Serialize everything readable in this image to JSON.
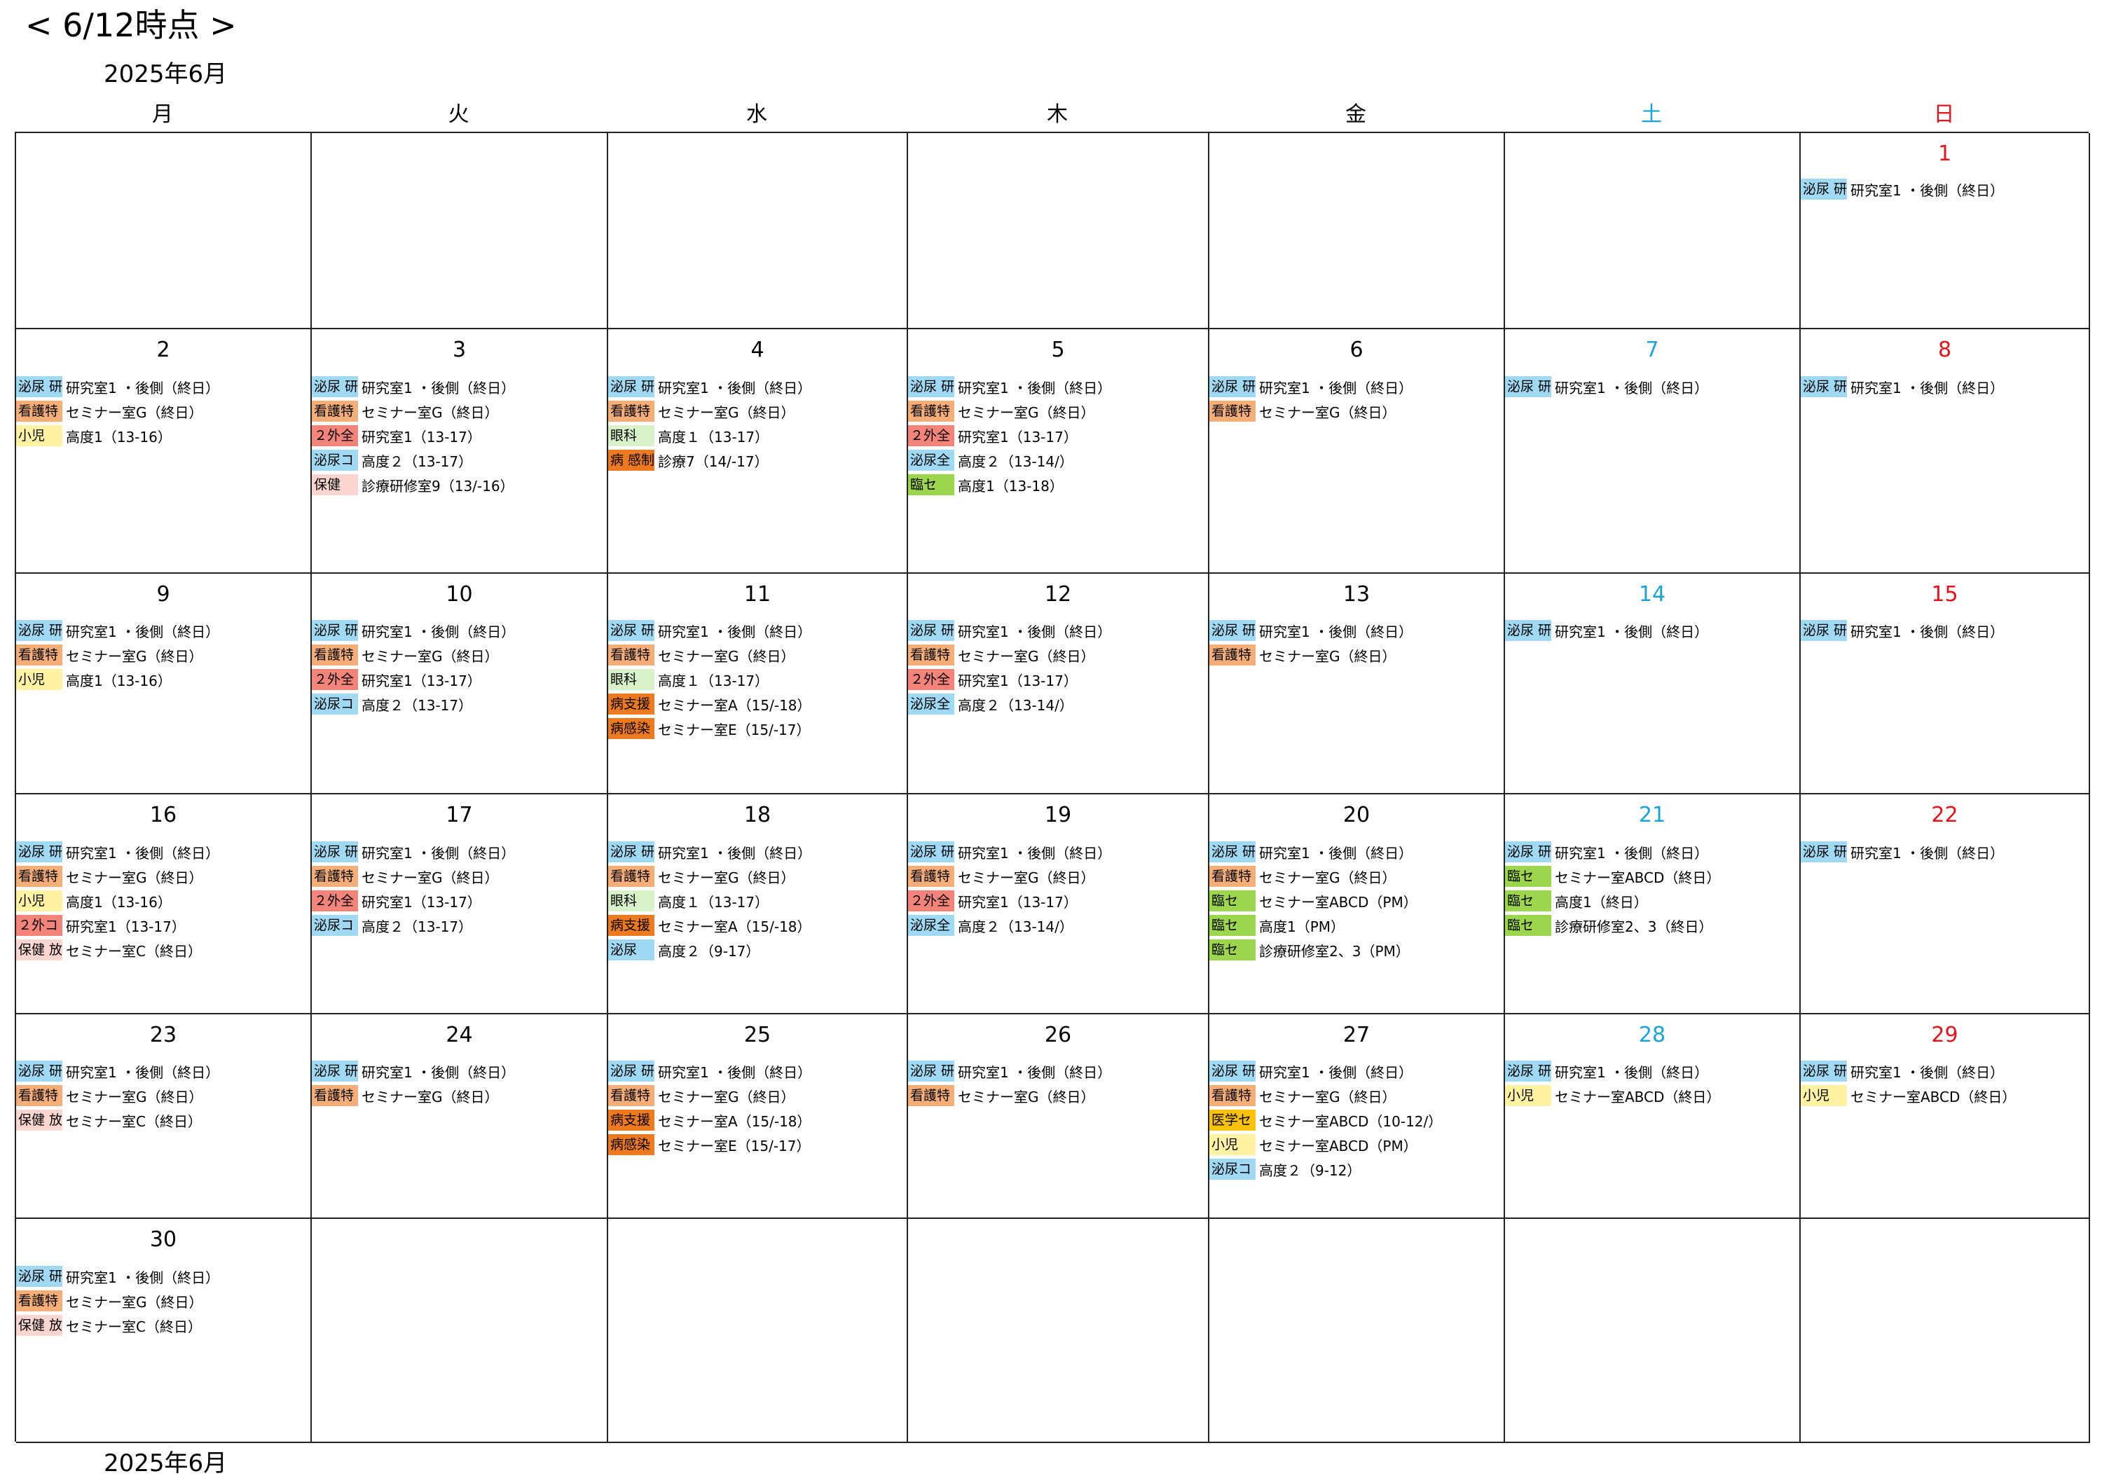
{
  "page_title": "< 6/12時点 >",
  "month_label": "2025年6月",
  "footer_month_label": "2025年6月",
  "weekdays": [
    {
      "label": "月",
      "kind": "wk"
    },
    {
      "label": "火",
      "kind": "wk"
    },
    {
      "label": "水",
      "kind": "wk"
    },
    {
      "label": "木",
      "kind": "wk"
    },
    {
      "label": "金",
      "kind": "wk"
    },
    {
      "label": "土",
      "kind": "sat"
    },
    {
      "label": "日",
      "kind": "sun"
    }
  ],
  "colors": {
    "weekday": "#000000",
    "saturday": "#1aa3d8",
    "sunday": "#e8121a",
    "hinyo": "#9fd9f3",
    "kango": "#f6ae78",
    "shoni": "#fff3a3",
    "gaizen": "#f4847a",
    "ganka": "#d9f1c9",
    "byo": "#ee7a1f",
    "rinse": "#9bd64c",
    "hoken": "#fbd5d0",
    "igakuse": "#fbc208"
  },
  "weeks": [
    [
      {
        "day": "",
        "events": []
      },
      {
        "day": "",
        "events": []
      },
      {
        "day": "",
        "events": []
      },
      {
        "day": "",
        "events": []
      },
      {
        "day": "",
        "events": []
      },
      {
        "day": "",
        "events": []
      },
      {
        "day": "1",
        "events": [
          {
            "tag": "泌尿 研",
            "color": "#9fd9f3",
            "room": "研究室1 ・後側（終日）"
          }
        ]
      }
    ],
    [
      {
        "day": "2",
        "events": [
          {
            "tag": "泌尿 研",
            "color": "#9fd9f3",
            "room": "研究室1 ・後側（終日）"
          },
          {
            "tag": "看護特",
            "color": "#f6ae78",
            "room": "セミナー室G（終日）"
          },
          {
            "tag": "小児",
            "color": "#fff3a3",
            "room": "高度1（13-16）"
          }
        ]
      },
      {
        "day": "3",
        "events": [
          {
            "tag": "泌尿 研",
            "color": "#9fd9f3",
            "room": "研究室1 ・後側（終日）"
          },
          {
            "tag": "看護特",
            "color": "#f6ae78",
            "room": "セミナー室G（終日）"
          },
          {
            "tag": "２外全",
            "color": "#f4847a",
            "room": "研究室1（13-17）"
          },
          {
            "tag": "泌尿コ",
            "color": "#9fd9f3",
            "room": "高度２（13-17）"
          },
          {
            "tag": "保健",
            "color": "#fbd5d0",
            "room": "診療研修室9（13/-16）"
          }
        ]
      },
      {
        "day": "4",
        "events": [
          {
            "tag": "泌尿 研",
            "color": "#9fd9f3",
            "room": "研究室1 ・後側（終日）"
          },
          {
            "tag": "看護特",
            "color": "#f6ae78",
            "room": "セミナー室G（終日）"
          },
          {
            "tag": "眼科",
            "color": "#d9f1c9",
            "room": "高度１（13-17）"
          },
          {
            "tag": "病 感制",
            "color": "#ee7a1f",
            "room": "診療7（14/-17）"
          }
        ]
      },
      {
        "day": "5",
        "events": [
          {
            "tag": "泌尿 研",
            "color": "#9fd9f3",
            "room": "研究室1 ・後側（終日）"
          },
          {
            "tag": "看護特",
            "color": "#f6ae78",
            "room": "セミナー室G（終日）"
          },
          {
            "tag": "２外全",
            "color": "#f4847a",
            "room": "研究室1（13-17）"
          },
          {
            "tag": "泌尿全",
            "color": "#9fd9f3",
            "room": "高度２（13-14/）"
          },
          {
            "tag": "臨セ",
            "color": "#9bd64c",
            "room": "高度1（13-18）"
          }
        ]
      },
      {
        "day": "6",
        "events": [
          {
            "tag": "泌尿 研",
            "color": "#9fd9f3",
            "room": "研究室1 ・後側（終日）"
          },
          {
            "tag": "看護特",
            "color": "#f6ae78",
            "room": "セミナー室G（終日）"
          }
        ]
      },
      {
        "day": "7",
        "events": [
          {
            "tag": "泌尿 研",
            "color": "#9fd9f3",
            "room": "研究室1 ・後側（終日）"
          }
        ]
      },
      {
        "day": "8",
        "events": [
          {
            "tag": "泌尿 研",
            "color": "#9fd9f3",
            "room": "研究室1 ・後側（終日）"
          }
        ]
      }
    ],
    [
      {
        "day": "9",
        "events": [
          {
            "tag": "泌尿 研",
            "color": "#9fd9f3",
            "room": "研究室1 ・後側（終日）"
          },
          {
            "tag": "看護特",
            "color": "#f6ae78",
            "room": "セミナー室G（終日）"
          },
          {
            "tag": "小児",
            "color": "#fff3a3",
            "room": "高度1（13-16）"
          }
        ]
      },
      {
        "day": "10",
        "events": [
          {
            "tag": "泌尿 研",
            "color": "#9fd9f3",
            "room": "研究室1 ・後側（終日）"
          },
          {
            "tag": "看護特",
            "color": "#f6ae78",
            "room": "セミナー室G（終日）"
          },
          {
            "tag": "２外全",
            "color": "#f4847a",
            "room": "研究室1（13-17）"
          },
          {
            "tag": "泌尿コ",
            "color": "#9fd9f3",
            "room": "高度２（13-17）"
          }
        ]
      },
      {
        "day": "11",
        "events": [
          {
            "tag": "泌尿 研",
            "color": "#9fd9f3",
            "room": "研究室1 ・後側（終日）"
          },
          {
            "tag": "看護特",
            "color": "#f6ae78",
            "room": "セミナー室G（終日）"
          },
          {
            "tag": "眼科",
            "color": "#d9f1c9",
            "room": "高度１（13-17）"
          },
          {
            "tag": "病支援",
            "color": "#ee7a1f",
            "room": "セミナー室A（15/-18）"
          },
          {
            "tag": "病感染",
            "color": "#ee7a1f",
            "room": "セミナー室E（15/-17）"
          }
        ]
      },
      {
        "day": "12",
        "events": [
          {
            "tag": "泌尿 研",
            "color": "#9fd9f3",
            "room": "研究室1 ・後側（終日）"
          },
          {
            "tag": "看護特",
            "color": "#f6ae78",
            "room": "セミナー室G（終日）"
          },
          {
            "tag": "２外全",
            "color": "#f4847a",
            "room": "研究室1（13-17）"
          },
          {
            "tag": "泌尿全",
            "color": "#9fd9f3",
            "room": "高度２（13-14/）"
          }
        ]
      },
      {
        "day": "13",
        "events": [
          {
            "tag": "泌尿 研",
            "color": "#9fd9f3",
            "room": "研究室1 ・後側（終日）"
          },
          {
            "tag": "看護特",
            "color": "#f6ae78",
            "room": "セミナー室G（終日）"
          }
        ]
      },
      {
        "day": "14",
        "events": [
          {
            "tag": "泌尿 研",
            "color": "#9fd9f3",
            "room": "研究室1 ・後側（終日）"
          }
        ]
      },
      {
        "day": "15",
        "events": [
          {
            "tag": "泌尿 研",
            "color": "#9fd9f3",
            "room": "研究室1 ・後側（終日）"
          }
        ]
      }
    ],
    [
      {
        "day": "16",
        "events": [
          {
            "tag": "泌尿 研",
            "color": "#9fd9f3",
            "room": "研究室1 ・後側（終日）"
          },
          {
            "tag": "看護特",
            "color": "#f6ae78",
            "room": "セミナー室G（終日）"
          },
          {
            "tag": "小児",
            "color": "#fff3a3",
            "room": "高度1（13-16）"
          },
          {
            "tag": "２外コ",
            "color": "#f4847a",
            "room": "研究室1（13-17）"
          },
          {
            "tag": "保健 放",
            "color": "#fbd5d0",
            "room": "セミナー室C（終日）"
          }
        ]
      },
      {
        "day": "17",
        "events": [
          {
            "tag": "泌尿 研",
            "color": "#9fd9f3",
            "room": "研究室1 ・後側（終日）"
          },
          {
            "tag": "看護特",
            "color": "#f6ae78",
            "room": "セミナー室G（終日）"
          },
          {
            "tag": "２外全",
            "color": "#f4847a",
            "room": "研究室1（13-17）"
          },
          {
            "tag": "泌尿コ",
            "color": "#9fd9f3",
            "room": "高度２（13-17）"
          }
        ]
      },
      {
        "day": "18",
        "events": [
          {
            "tag": "泌尿 研",
            "color": "#9fd9f3",
            "room": "研究室1 ・後側（終日）"
          },
          {
            "tag": "看護特",
            "color": "#f6ae78",
            "room": "セミナー室G（終日）"
          },
          {
            "tag": "眼科",
            "color": "#d9f1c9",
            "room": "高度１（13-17）"
          },
          {
            "tag": "病支援",
            "color": "#ee7a1f",
            "room": "セミナー室A（15/-18）"
          },
          {
            "tag": "泌尿",
            "color": "#9fd9f3",
            "room": "高度２（9-17）"
          }
        ]
      },
      {
        "day": "19",
        "events": [
          {
            "tag": "泌尿 研",
            "color": "#9fd9f3",
            "room": "研究室1 ・後側（終日）"
          },
          {
            "tag": "看護特",
            "color": "#f6ae78",
            "room": "セミナー室G（終日）"
          },
          {
            "tag": "２外全",
            "color": "#f4847a",
            "room": "研究室1（13-17）"
          },
          {
            "tag": "泌尿全",
            "color": "#9fd9f3",
            "room": "高度２（13-14/）"
          }
        ]
      },
      {
        "day": "20",
        "events": [
          {
            "tag": "泌尿 研",
            "color": "#9fd9f3",
            "room": "研究室1 ・後側（終日）"
          },
          {
            "tag": "看護特",
            "color": "#f6ae78",
            "room": "セミナー室G（終日）"
          },
          {
            "tag": "臨セ",
            "color": "#9bd64c",
            "room": "セミナー室ABCD（PM）"
          },
          {
            "tag": "臨セ",
            "color": "#9bd64c",
            "room": "高度1（PM）"
          },
          {
            "tag": "臨セ",
            "color": "#9bd64c",
            "room": "診療研修室2、3（PM）"
          }
        ]
      },
      {
        "day": "21",
        "events": [
          {
            "tag": "泌尿 研",
            "color": "#9fd9f3",
            "room": "研究室1 ・後側（終日）"
          },
          {
            "tag": "臨セ",
            "color": "#9bd64c",
            "room": "セミナー室ABCD（終日）"
          },
          {
            "tag": "臨セ",
            "color": "#9bd64c",
            "room": "高度1（終日）"
          },
          {
            "tag": "臨セ",
            "color": "#9bd64c",
            "room": "診療研修室2、3（終日）"
          }
        ]
      },
      {
        "day": "22",
        "events": [
          {
            "tag": "泌尿 研",
            "color": "#9fd9f3",
            "room": "研究室1 ・後側（終日）"
          }
        ]
      }
    ],
    [
      {
        "day": "23",
        "events": [
          {
            "tag": "泌尿 研",
            "color": "#9fd9f3",
            "room": "研究室1 ・後側（終日）"
          },
          {
            "tag": "看護特",
            "color": "#f6ae78",
            "room": "セミナー室G（終日）"
          },
          {
            "tag": "保健 放",
            "color": "#fbd5d0",
            "room": "セミナー室C（終日）"
          }
        ]
      },
      {
        "day": "24",
        "events": [
          {
            "tag": "泌尿 研",
            "color": "#9fd9f3",
            "room": "研究室1 ・後側（終日）"
          },
          {
            "tag": "看護特",
            "color": "#f6ae78",
            "room": "セミナー室G（終日）"
          }
        ]
      },
      {
        "day": "25",
        "events": [
          {
            "tag": "泌尿 研",
            "color": "#9fd9f3",
            "room": "研究室1 ・後側（終日）"
          },
          {
            "tag": "看護特",
            "color": "#f6ae78",
            "room": "セミナー室G（終日）"
          },
          {
            "tag": "病支援",
            "color": "#ee7a1f",
            "room": "セミナー室A（15/-18）"
          },
          {
            "tag": "病感染",
            "color": "#ee7a1f",
            "room": "セミナー室E（15/-17）"
          }
        ]
      },
      {
        "day": "26",
        "events": [
          {
            "tag": "泌尿 研",
            "color": "#9fd9f3",
            "room": "研究室1 ・後側（終日）"
          },
          {
            "tag": "看護特",
            "color": "#f6ae78",
            "room": "セミナー室G（終日）"
          }
        ]
      },
      {
        "day": "27",
        "events": [
          {
            "tag": "泌尿 研",
            "color": "#9fd9f3",
            "room": "研究室1 ・後側（終日）"
          },
          {
            "tag": "看護特",
            "color": "#f6ae78",
            "room": "セミナー室G（終日）"
          },
          {
            "tag": "医学セ",
            "color": "#fbc208",
            "room": "セミナー室ABCD（10-12/）"
          },
          {
            "tag": "小児",
            "color": "#fff3a3",
            "room": "セミナー室ABCD（PM）"
          },
          {
            "tag": "泌尿コ",
            "color": "#9fd9f3",
            "room": "高度２（9-12）"
          }
        ]
      },
      {
        "day": "28",
        "events": [
          {
            "tag": "泌尿 研",
            "color": "#9fd9f3",
            "room": "研究室1 ・後側（終日）"
          },
          {
            "tag": "小児",
            "color": "#fff3a3",
            "room": "セミナー室ABCD（終日）"
          }
        ]
      },
      {
        "day": "29",
        "events": [
          {
            "tag": "泌尿 研",
            "color": "#9fd9f3",
            "room": "研究室1 ・後側（終日）"
          },
          {
            "tag": "小児",
            "color": "#fff3a3",
            "room": "セミナー室ABCD（終日）"
          }
        ]
      }
    ],
    [
      {
        "day": "30",
        "events": [
          {
            "tag": "泌尿 研",
            "color": "#9fd9f3",
            "room": "研究室1 ・後側（終日）"
          },
          {
            "tag": "看護特",
            "color": "#f6ae78",
            "room": "セミナー室G（終日）"
          },
          {
            "tag": "保健 放",
            "color": "#fbd5d0",
            "room": "セミナー室C（終日）"
          }
        ]
      },
      {
        "day": "",
        "events": []
      },
      {
        "day": "",
        "events": []
      },
      {
        "day": "",
        "events": []
      },
      {
        "day": "",
        "events": []
      },
      {
        "day": "",
        "events": []
      },
      {
        "day": "",
        "events": []
      }
    ]
  ]
}
